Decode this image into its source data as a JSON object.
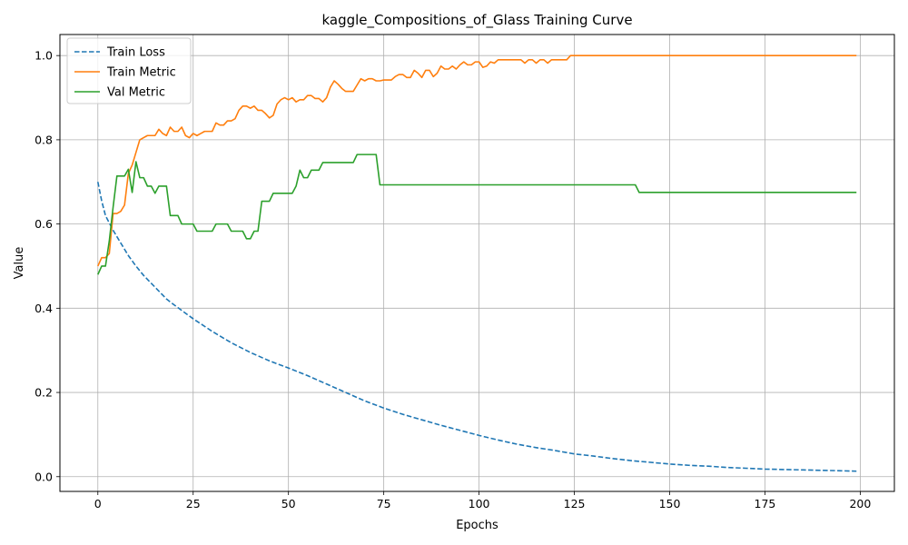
{
  "chart_data": {
    "type": "line",
    "title": "kaggle_Compositions_of_Glass Training Curve",
    "xlabel": "Epochs",
    "ylabel": "Value",
    "xlim": [
      -9.95,
      208.95
    ],
    "ylim": [
      -0.035,
      1.05
    ],
    "xticks": [
      0,
      25,
      50,
      75,
      100,
      125,
      150,
      175,
      200
    ],
    "xtick_labels": [
      "0",
      "25",
      "50",
      "75",
      "100",
      "125",
      "150",
      "175",
      "200"
    ],
    "yticks": [
      0.0,
      0.2,
      0.4,
      0.6,
      0.8,
      1.0
    ],
    "ytick_labels": [
      "0.0",
      "0.2",
      "0.4",
      "0.6",
      "0.8",
      "1.0"
    ],
    "grid": true,
    "legend_position": "upper-left",
    "series": [
      {
        "name": "Train Loss",
        "color": "#1f77b4",
        "style": "dashed",
        "points": [
          [
            0,
            0.7
          ],
          [
            1,
            0.655
          ],
          [
            2,
            0.62
          ],
          [
            4,
            0.585
          ],
          [
            6,
            0.555
          ],
          [
            8,
            0.525
          ],
          [
            10,
            0.5
          ],
          [
            12,
            0.478
          ],
          [
            15,
            0.45
          ],
          [
            18,
            0.422
          ],
          [
            20,
            0.408
          ],
          [
            25,
            0.375
          ],
          [
            30,
            0.345
          ],
          [
            35,
            0.318
          ],
          [
            40,
            0.295
          ],
          [
            45,
            0.275
          ],
          [
            50,
            0.258
          ],
          [
            55,
            0.24
          ],
          [
            60,
            0.22
          ],
          [
            65,
            0.2
          ],
          [
            70,
            0.18
          ],
          [
            75,
            0.163
          ],
          [
            80,
            0.148
          ],
          [
            85,
            0.135
          ],
          [
            90,
            0.122
          ],
          [
            95,
            0.11
          ],
          [
            100,
            0.098
          ],
          [
            105,
            0.087
          ],
          [
            110,
            0.077
          ],
          [
            115,
            0.069
          ],
          [
            120,
            0.062
          ],
          [
            125,
            0.054
          ],
          [
            130,
            0.049
          ],
          [
            135,
            0.043
          ],
          [
            140,
            0.038
          ],
          [
            145,
            0.034
          ],
          [
            150,
            0.03
          ],
          [
            155,
            0.027
          ],
          [
            160,
            0.025
          ],
          [
            165,
            0.022
          ],
          [
            170,
            0.02
          ],
          [
            175,
            0.018
          ],
          [
            180,
            0.017
          ],
          [
            185,
            0.016
          ],
          [
            190,
            0.015
          ],
          [
            195,
            0.014
          ],
          [
            199,
            0.013
          ]
        ]
      },
      {
        "name": "Train Metric",
        "color": "#ff7f0e",
        "style": "solid",
        "points": [
          [
            0,
            0.5
          ],
          [
            1,
            0.52
          ],
          [
            2,
            0.52
          ],
          [
            3,
            0.53
          ],
          [
            4,
            0.625
          ],
          [
            5,
            0.625
          ],
          [
            6,
            0.63
          ],
          [
            7,
            0.645
          ],
          [
            8,
            0.72
          ],
          [
            9,
            0.74
          ],
          [
            10,
            0.77
          ],
          [
            11,
            0.8
          ],
          [
            12,
            0.805
          ],
          [
            13,
            0.81
          ],
          [
            14,
            0.81
          ],
          [
            15,
            0.81
          ],
          [
            16,
            0.825
          ],
          [
            17,
            0.815
          ],
          [
            18,
            0.81
          ],
          [
            19,
            0.83
          ],
          [
            20,
            0.82
          ],
          [
            21,
            0.82
          ],
          [
            22,
            0.83
          ],
          [
            23,
            0.81
          ],
          [
            24,
            0.805
          ],
          [
            25,
            0.815
          ],
          [
            26,
            0.81
          ],
          [
            27,
            0.815
          ],
          [
            28,
            0.82
          ],
          [
            29,
            0.82
          ],
          [
            30,
            0.82
          ],
          [
            31,
            0.84
          ],
          [
            32,
            0.835
          ],
          [
            33,
            0.835
          ],
          [
            34,
            0.845
          ],
          [
            35,
            0.845
          ],
          [
            36,
            0.85
          ],
          [
            37,
            0.87
          ],
          [
            38,
            0.88
          ],
          [
            39,
            0.88
          ],
          [
            40,
            0.875
          ],
          [
            41,
            0.88
          ],
          [
            42,
            0.87
          ],
          [
            43,
            0.87
          ],
          [
            44,
            0.862
          ],
          [
            45,
            0.852
          ],
          [
            46,
            0.858
          ],
          [
            47,
            0.885
          ],
          [
            48,
            0.895
          ],
          [
            49,
            0.9
          ],
          [
            50,
            0.895
          ],
          [
            51,
            0.9
          ],
          [
            52,
            0.89
          ],
          [
            53,
            0.895
          ],
          [
            54,
            0.895
          ],
          [
            55,
            0.905
          ],
          [
            56,
            0.905
          ],
          [
            57,
            0.898
          ],
          [
            58,
            0.898
          ],
          [
            59,
            0.89
          ],
          [
            60,
            0.9
          ],
          [
            61,
            0.925
          ],
          [
            62,
            0.94
          ],
          [
            63,
            0.932
          ],
          [
            64,
            0.922
          ],
          [
            65,
            0.915
          ],
          [
            66,
            0.915
          ],
          [
            67,
            0.915
          ],
          [
            68,
            0.93
          ],
          [
            69,
            0.945
          ],
          [
            70,
            0.94
          ],
          [
            71,
            0.945
          ],
          [
            72,
            0.945
          ],
          [
            73,
            0.94
          ],
          [
            74,
            0.94
          ],
          [
            75,
            0.942
          ],
          [
            76,
            0.942
          ],
          [
            77,
            0.942
          ],
          [
            78,
            0.95
          ],
          [
            79,
            0.955
          ],
          [
            80,
            0.955
          ],
          [
            81,
            0.948
          ],
          [
            82,
            0.948
          ],
          [
            83,
            0.965
          ],
          [
            84,
            0.958
          ],
          [
            85,
            0.948
          ],
          [
            86,
            0.965
          ],
          [
            87,
            0.965
          ],
          [
            88,
            0.95
          ],
          [
            89,
            0.958
          ],
          [
            90,
            0.975
          ],
          [
            91,
            0.968
          ],
          [
            92,
            0.968
          ],
          [
            93,
            0.975
          ],
          [
            94,
            0.968
          ],
          [
            95,
            0.978
          ],
          [
            96,
            0.985
          ],
          [
            97,
            0.978
          ],
          [
            98,
            0.978
          ],
          [
            99,
            0.985
          ],
          [
            100,
            0.985
          ],
          [
            101,
            0.972
          ],
          [
            102,
            0.975
          ],
          [
            103,
            0.985
          ],
          [
            104,
            0.982
          ],
          [
            105,
            0.99
          ],
          [
            106,
            0.99
          ],
          [
            107,
            0.99
          ],
          [
            108,
            0.99
          ],
          [
            109,
            0.99
          ],
          [
            110,
            0.99
          ],
          [
            111,
            0.99
          ],
          [
            112,
            0.982
          ],
          [
            113,
            0.99
          ],
          [
            114,
            0.99
          ],
          [
            115,
            0.982
          ],
          [
            116,
            0.99
          ],
          [
            117,
            0.99
          ],
          [
            118,
            0.982
          ],
          [
            119,
            0.99
          ],
          [
            120,
            0.99
          ],
          [
            121,
            0.99
          ],
          [
            122,
            0.99
          ],
          [
            123,
            0.99
          ],
          [
            124,
            1.0
          ],
          [
            150,
            1.0
          ],
          [
            175,
            1.0
          ],
          [
            199,
            1.0
          ]
        ]
      },
      {
        "name": "Val Metric",
        "color": "#2ca02c",
        "style": "solid",
        "points": [
          [
            0,
            0.48
          ],
          [
            1,
            0.5
          ],
          [
            2,
            0.5
          ],
          [
            3,
            0.56
          ],
          [
            4,
            0.64
          ],
          [
            5,
            0.714
          ],
          [
            6,
            0.714
          ],
          [
            7,
            0.714
          ],
          [
            8,
            0.73
          ],
          [
            9,
            0.675
          ],
          [
            10,
            0.748
          ],
          [
            11,
            0.71
          ],
          [
            12,
            0.71
          ],
          [
            13,
            0.69
          ],
          [
            14,
            0.69
          ],
          [
            15,
            0.673
          ],
          [
            16,
            0.69
          ],
          [
            17,
            0.69
          ],
          [
            18,
            0.69
          ],
          [
            19,
            0.62
          ],
          [
            20,
            0.62
          ],
          [
            21,
            0.62
          ],
          [
            22,
            0.6
          ],
          [
            23,
            0.6
          ],
          [
            24,
            0.6
          ],
          [
            25,
            0.6
          ],
          [
            26,
            0.583
          ],
          [
            27,
            0.583
          ],
          [
            28,
            0.583
          ],
          [
            29,
            0.583
          ],
          [
            30,
            0.583
          ],
          [
            31,
            0.6
          ],
          [
            32,
            0.6
          ],
          [
            33,
            0.6
          ],
          [
            34,
            0.6
          ],
          [
            35,
            0.583
          ],
          [
            36,
            0.583
          ],
          [
            37,
            0.583
          ],
          [
            38,
            0.583
          ],
          [
            39,
            0.565
          ],
          [
            40,
            0.565
          ],
          [
            41,
            0.583
          ],
          [
            42,
            0.583
          ],
          [
            43,
            0.654
          ],
          [
            44,
            0.654
          ],
          [
            45,
            0.654
          ],
          [
            46,
            0.673
          ],
          [
            47,
            0.673
          ],
          [
            48,
            0.673
          ],
          [
            49,
            0.673
          ],
          [
            50,
            0.673
          ],
          [
            51,
            0.673
          ],
          [
            52,
            0.69
          ],
          [
            53,
            0.728
          ],
          [
            54,
            0.71
          ],
          [
            55,
            0.71
          ],
          [
            56,
            0.728
          ],
          [
            57,
            0.728
          ],
          [
            58,
            0.728
          ],
          [
            59,
            0.746
          ],
          [
            60,
            0.746
          ],
          [
            65,
            0.746
          ],
          [
            67,
            0.746
          ],
          [
            68,
            0.765
          ],
          [
            69,
            0.765
          ],
          [
            73,
            0.765
          ],
          [
            74,
            0.693
          ],
          [
            100,
            0.693
          ],
          [
            125,
            0.693
          ],
          [
            141,
            0.693
          ],
          [
            142,
            0.675
          ],
          [
            150,
            0.675
          ],
          [
            175,
            0.675
          ],
          [
            199,
            0.675
          ]
        ]
      }
    ]
  }
}
